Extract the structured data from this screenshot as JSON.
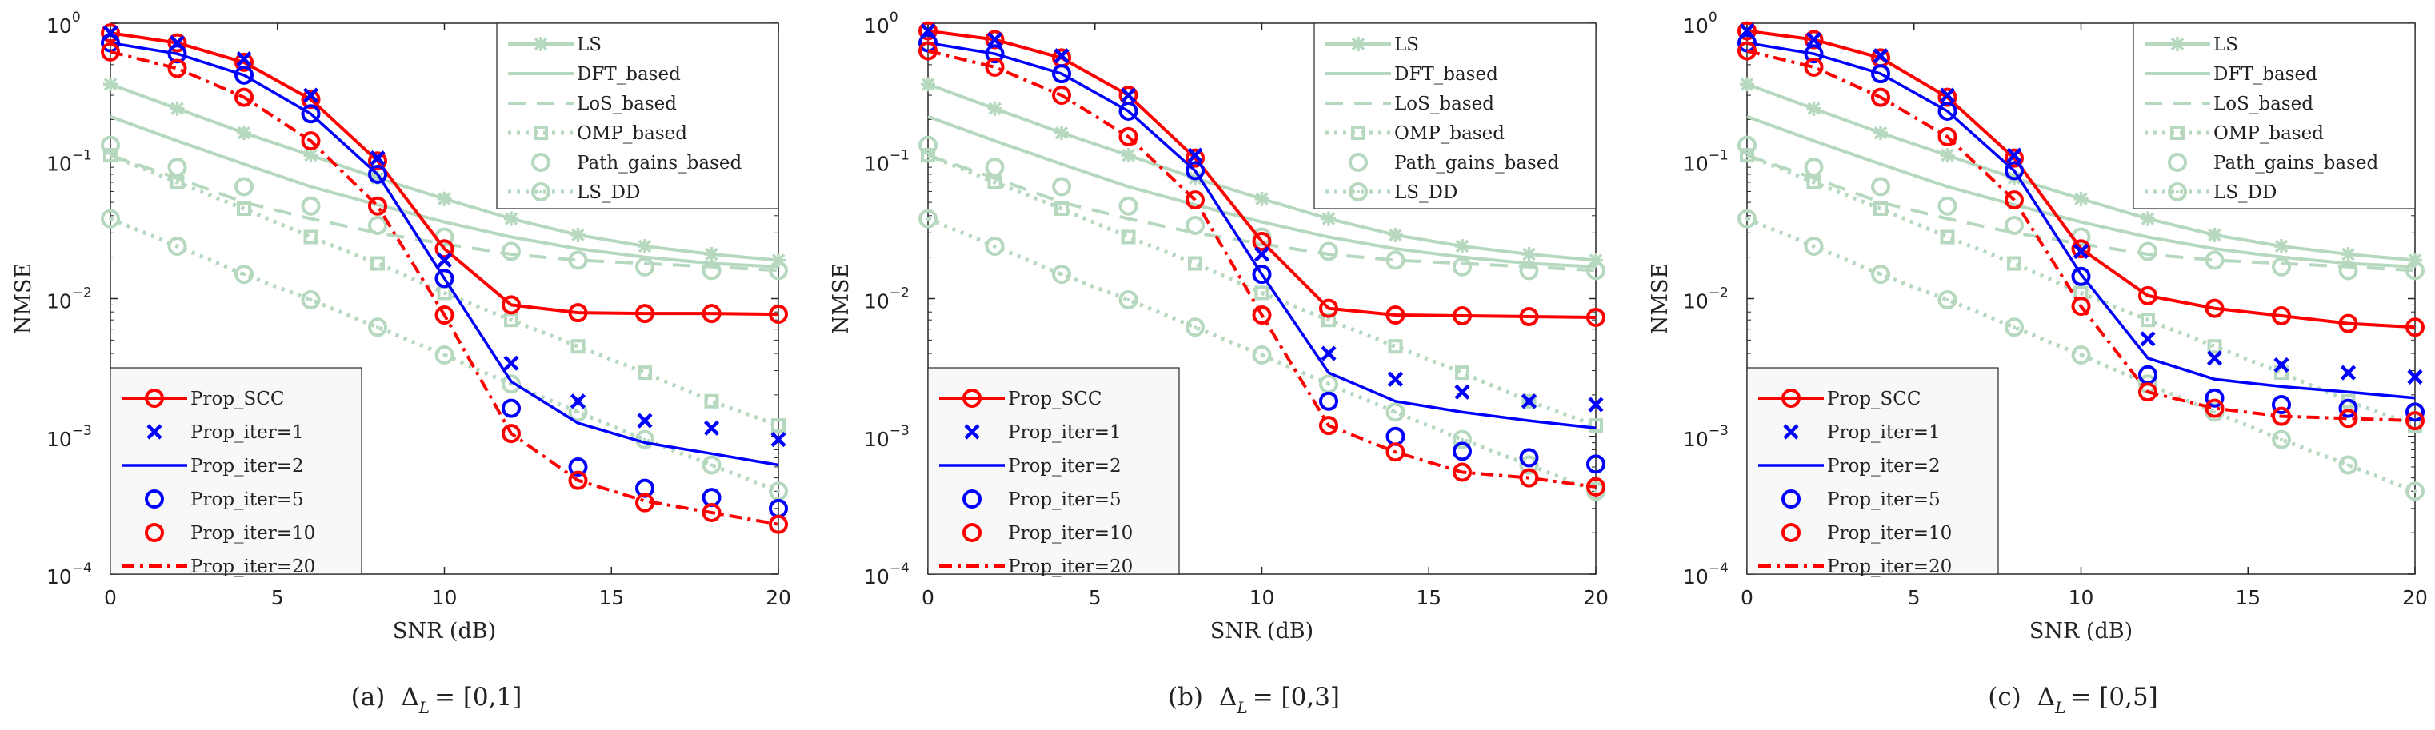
{
  "colors": {
    "baseline": "#b5d8be",
    "red": "#ff0000",
    "blue": "#0000ff",
    "axis": "#262626"
  },
  "chart_data": [
    {
      "type": "line",
      "caption": {
        "label": "(a)",
        "symbol": "Δ",
        "subscript": "L",
        "range": "= [0,1]"
      },
      "xlabel": "SNR (dB)",
      "ylabel": "NMSE",
      "yscale": "log",
      "xlim": [
        0,
        20
      ],
      "ylim": [
        0.0001,
        1
      ],
      "xticks": [
        "0",
        "5",
        "10",
        "15",
        "20"
      ],
      "yticks": [
        {
          "base": "10",
          "exp": "0"
        },
        {
          "base": "10",
          "exp": "−1"
        },
        {
          "base": "10",
          "exp": "−2"
        },
        {
          "base": "10",
          "exp": "−3"
        },
        {
          "base": "10",
          "exp": "−4"
        }
      ],
      "x": [
        0,
        2,
        4,
        6,
        8,
        10,
        12,
        14,
        16,
        18,
        20
      ],
      "series": [
        {
          "name": "LS",
          "style": "baseline-asterisk",
          "values": [
            0.36,
            0.24,
            0.16,
            0.11,
            0.075,
            0.053,
            0.038,
            0.029,
            0.024,
            0.021,
            0.019
          ]
        },
        {
          "name": "DFT_based",
          "style": "baseline-solid",
          "values": [
            0.21,
            0.14,
            0.095,
            0.065,
            0.048,
            0.036,
            0.028,
            0.023,
            0.02,
            0.018,
            0.017
          ]
        },
        {
          "name": "LoS_based",
          "style": "baseline-dashed",
          "values": [
            0.11,
            0.075,
            0.05,
            0.038,
            0.03,
            0.025,
            0.021,
            0.019,
            0.018,
            0.017,
            0.016
          ]
        },
        {
          "name": "OMP_based",
          "style": "baseline-dotted-square",
          "values": [
            0.11,
            0.07,
            0.045,
            0.028,
            0.018,
            0.011,
            0.007,
            0.0045,
            0.0029,
            0.0018,
            0.0012
          ]
        },
        {
          "name": "Path_gains_based",
          "style": "baseline-circle",
          "values": [
            0.13,
            0.09,
            0.065,
            0.047,
            0.034,
            0.028,
            0.022,
            0.019,
            0.017,
            0.016,
            0.016
          ]
        },
        {
          "name": "LS_DD",
          "style": "baseline-dotted-circle",
          "values": [
            0.038,
            0.024,
            0.015,
            0.0098,
            0.0062,
            0.0039,
            0.0024,
            0.0015,
            0.00095,
            0.00062,
            0.0004
          ]
        },
        {
          "name": "Prop_SCC",
          "style": "red-solid-circle",
          "values": [
            0.85,
            0.72,
            0.52,
            0.28,
            0.1,
            0.023,
            0.009,
            0.0079,
            0.0078,
            0.0078,
            0.0077
          ]
        },
        {
          "name": "Prop_iter=1",
          "style": "blue-cross",
          "values": [
            0.85,
            0.72,
            0.55,
            0.3,
            0.105,
            0.019,
            0.0034,
            0.0018,
            0.0013,
            0.00115,
            0.00095
          ]
        },
        {
          "name": "Prop_iter=2",
          "style": "blue-solid",
          "values": [
            0.72,
            0.6,
            0.42,
            0.22,
            0.08,
            0.014,
            0.0025,
            0.00125,
            0.0009,
            0.00075,
            0.00062
          ]
        },
        {
          "name": "Prop_iter=5",
          "style": "blue-circle",
          "values": [
            0.72,
            0.6,
            0.42,
            0.22,
            0.08,
            0.014,
            0.0016,
            0.0006,
            0.00042,
            0.00036,
            0.0003
          ]
        },
        {
          "name": "Prop_iter=10",
          "style": "red-circle",
          "values": [
            0.62,
            0.47,
            0.29,
            0.14,
            0.047,
            0.0076,
            0.00105,
            0.00048,
            0.00033,
            0.00028,
            0.00023
          ]
        },
        {
          "name": "Prop_iter=20",
          "style": "red-dashdot",
          "values": [
            0.62,
            0.47,
            0.29,
            0.14,
            0.047,
            0.0076,
            0.00105,
            0.00048,
            0.00034,
            0.00028,
            0.00023
          ]
        }
      ],
      "legends": [
        {
          "placement": "top-right",
          "entries": [
            0,
            1,
            2,
            3,
            4,
            5
          ]
        },
        {
          "placement": "bottom-left",
          "entries": [
            6,
            7,
            8,
            9,
            10,
            11
          ]
        }
      ]
    },
    {
      "type": "line",
      "caption": {
        "label": "(b)",
        "symbol": "Δ",
        "subscript": "L",
        "range": "= [0,3]"
      },
      "xlabel": "SNR (dB)",
      "ylabel": "NMSE",
      "yscale": "log",
      "xlim": [
        0,
        20
      ],
      "ylim": [
        0.0001,
        1
      ],
      "xticks": [
        "0",
        "5",
        "10",
        "15",
        "20"
      ],
      "yticks": [
        {
          "base": "10",
          "exp": "0"
        },
        {
          "base": "10",
          "exp": "−1"
        },
        {
          "base": "10",
          "exp": "−2"
        },
        {
          "base": "10",
          "exp": "−3"
        },
        {
          "base": "10",
          "exp": "−4"
        }
      ],
      "x": [
        0,
        2,
        4,
        6,
        8,
        10,
        12,
        14,
        16,
        18,
        20
      ],
      "series": [
        {
          "name": "LS",
          "style": "baseline-asterisk",
          "values": [
            0.36,
            0.24,
            0.16,
            0.11,
            0.075,
            0.053,
            0.038,
            0.029,
            0.024,
            0.021,
            0.019
          ]
        },
        {
          "name": "DFT_based",
          "style": "baseline-solid",
          "values": [
            0.21,
            0.14,
            0.095,
            0.065,
            0.048,
            0.036,
            0.028,
            0.023,
            0.02,
            0.018,
            0.017
          ]
        },
        {
          "name": "LoS_based",
          "style": "baseline-dashed",
          "values": [
            0.11,
            0.075,
            0.05,
            0.038,
            0.03,
            0.025,
            0.021,
            0.019,
            0.018,
            0.017,
            0.016
          ]
        },
        {
          "name": "OMP_based",
          "style": "baseline-dotted-square",
          "values": [
            0.11,
            0.07,
            0.045,
            0.028,
            0.018,
            0.011,
            0.007,
            0.0045,
            0.0029,
            0.0018,
            0.0012
          ]
        },
        {
          "name": "Path_gains_based",
          "style": "baseline-circle",
          "values": [
            0.13,
            0.09,
            0.065,
            0.047,
            0.034,
            0.028,
            0.022,
            0.019,
            0.017,
            0.016,
            0.016
          ]
        },
        {
          "name": "LS_DD",
          "style": "baseline-dotted-circle",
          "values": [
            0.038,
            0.024,
            0.015,
            0.0098,
            0.0062,
            0.0039,
            0.0024,
            0.0015,
            0.00095,
            0.00062,
            0.0004
          ]
        },
        {
          "name": "Prop_SCC",
          "style": "red-solid-circle",
          "values": [
            0.88,
            0.76,
            0.56,
            0.3,
            0.105,
            0.026,
            0.0085,
            0.0076,
            0.0075,
            0.0074,
            0.0073
          ]
        },
        {
          "name": "Prop_iter=1",
          "style": "blue-cross",
          "values": [
            0.88,
            0.76,
            0.58,
            0.3,
            0.11,
            0.021,
            0.004,
            0.0026,
            0.0021,
            0.0018,
            0.0017
          ]
        },
        {
          "name": "Prop_iter=2",
          "style": "blue-solid",
          "values": [
            0.72,
            0.6,
            0.43,
            0.23,
            0.085,
            0.015,
            0.0029,
            0.0018,
            0.0015,
            0.0013,
            0.00115
          ]
        },
        {
          "name": "Prop_iter=5",
          "style": "blue-circle",
          "values": [
            0.72,
            0.6,
            0.43,
            0.23,
            0.085,
            0.015,
            0.0018,
            0.001,
            0.00078,
            0.0007,
            0.00063
          ]
        },
        {
          "name": "Prop_iter=10",
          "style": "red-circle",
          "values": [
            0.63,
            0.48,
            0.3,
            0.15,
            0.052,
            0.0076,
            0.0012,
            0.00077,
            0.00055,
            0.0005,
            0.00043
          ]
        },
        {
          "name": "Prop_iter=20",
          "style": "red-dashdot",
          "values": [
            0.63,
            0.48,
            0.3,
            0.15,
            0.052,
            0.0076,
            0.0012,
            0.00077,
            0.00055,
            0.0005,
            0.00043
          ]
        }
      ],
      "legends": [
        {
          "placement": "top-right",
          "entries": [
            0,
            1,
            2,
            3,
            4,
            5
          ]
        },
        {
          "placement": "bottom-left",
          "entries": [
            6,
            7,
            8,
            9,
            10,
            11
          ]
        }
      ]
    },
    {
      "type": "line",
      "caption": {
        "label": "(c)",
        "symbol": "Δ",
        "subscript": "L",
        "range": "= [0,5]"
      },
      "xlabel": "SNR (dB)",
      "ylabel": "NMSE",
      "yscale": "log",
      "xlim": [
        0,
        20
      ],
      "ylim": [
        0.0001,
        1
      ],
      "xticks": [
        "0",
        "5",
        "10",
        "15",
        "20"
      ],
      "yticks": [
        {
          "base": "10",
          "exp": "0"
        },
        {
          "base": "10",
          "exp": "−1"
        },
        {
          "base": "10",
          "exp": "−2"
        },
        {
          "base": "10",
          "exp": "−3"
        },
        {
          "base": "10",
          "exp": "−4"
        }
      ],
      "x": [
        0,
        2,
        4,
        6,
        8,
        10,
        12,
        14,
        16,
        18,
        20
      ],
      "series": [
        {
          "name": "LS",
          "style": "baseline-asterisk",
          "values": [
            0.36,
            0.24,
            0.16,
            0.11,
            0.075,
            0.053,
            0.038,
            0.029,
            0.024,
            0.021,
            0.019
          ]
        },
        {
          "name": "DFT_based",
          "style": "baseline-solid",
          "values": [
            0.21,
            0.14,
            0.095,
            0.065,
            0.048,
            0.036,
            0.028,
            0.023,
            0.02,
            0.018,
            0.017
          ]
        },
        {
          "name": "LoS_based",
          "style": "baseline-dashed",
          "values": [
            0.11,
            0.075,
            0.05,
            0.038,
            0.03,
            0.025,
            0.021,
            0.019,
            0.018,
            0.017,
            0.016
          ]
        },
        {
          "name": "OMP_based",
          "style": "baseline-dotted-square",
          "values": [
            0.11,
            0.07,
            0.045,
            0.028,
            0.018,
            0.011,
            0.007,
            0.0045,
            0.0029,
            0.0018,
            0.0012
          ]
        },
        {
          "name": "Path_gains_based",
          "style": "baseline-circle",
          "values": [
            0.13,
            0.09,
            0.065,
            0.047,
            0.034,
            0.028,
            0.022,
            0.019,
            0.017,
            0.016,
            0.016
          ]
        },
        {
          "name": "LS_DD",
          "style": "baseline-dotted-circle",
          "values": [
            0.038,
            0.024,
            0.015,
            0.0098,
            0.0062,
            0.0039,
            0.0024,
            0.0015,
            0.00095,
            0.00062,
            0.0004
          ]
        },
        {
          "name": "Prop_SCC",
          "style": "red-solid-circle",
          "values": [
            0.88,
            0.76,
            0.56,
            0.29,
            0.105,
            0.023,
            0.0105,
            0.0085,
            0.0075,
            0.0066,
            0.0062
          ]
        },
        {
          "name": "Prop_iter=1",
          "style": "blue-cross",
          "values": [
            0.88,
            0.76,
            0.58,
            0.3,
            0.11,
            0.022,
            0.0051,
            0.0037,
            0.0033,
            0.0029,
            0.0027
          ]
        },
        {
          "name": "Prop_iter=2",
          "style": "blue-solid",
          "values": [
            0.72,
            0.6,
            0.43,
            0.23,
            0.085,
            0.015,
            0.0037,
            0.0026,
            0.0023,
            0.0021,
            0.0019
          ]
        },
        {
          "name": "Prop_iter=5",
          "style": "blue-circle",
          "values": [
            0.72,
            0.6,
            0.43,
            0.23,
            0.085,
            0.0145,
            0.0028,
            0.0019,
            0.0017,
            0.0016,
            0.0015
          ]
        },
        {
          "name": "Prop_iter=10",
          "style": "red-circle",
          "values": [
            0.63,
            0.48,
            0.29,
            0.15,
            0.052,
            0.0088,
            0.0021,
            0.0016,
            0.0014,
            0.00135,
            0.0013
          ]
        },
        {
          "name": "Prop_iter=20",
          "style": "red-dashdot",
          "values": [
            0.63,
            0.48,
            0.29,
            0.15,
            0.052,
            0.0088,
            0.0021,
            0.0016,
            0.0014,
            0.00135,
            0.0013
          ]
        }
      ],
      "legends": [
        {
          "placement": "top-right",
          "entries": [
            0,
            1,
            2,
            3,
            4,
            5
          ]
        },
        {
          "placement": "bottom-left",
          "entries": [
            6,
            7,
            8,
            9,
            10,
            11
          ]
        }
      ]
    }
  ]
}
